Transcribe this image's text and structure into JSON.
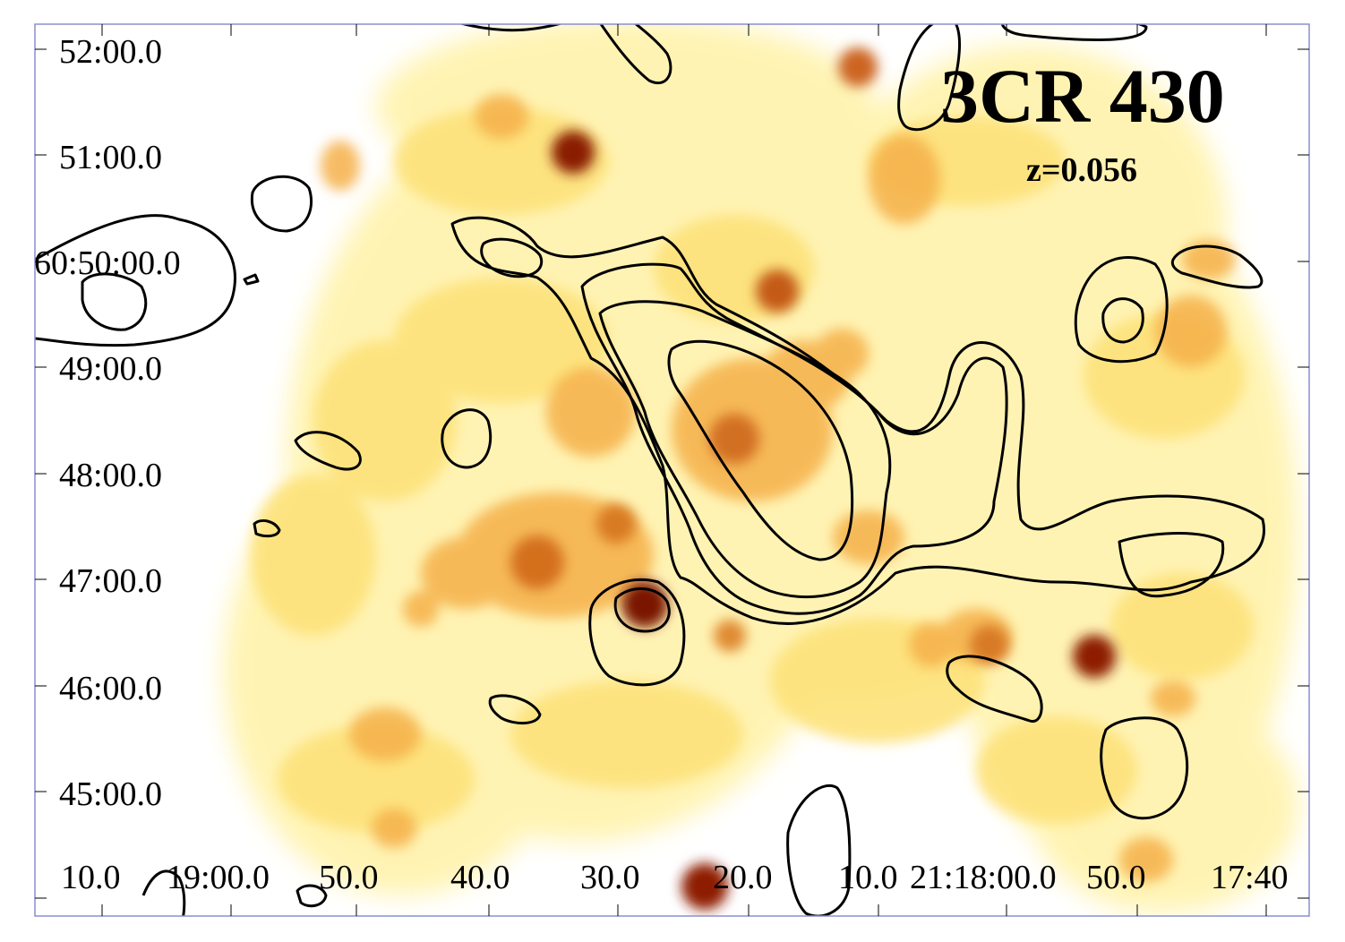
{
  "image": {
    "title": "3CR 430",
    "subtitle": "z=0.056",
    "colors": {
      "frame": "#8a8fd0",
      "contour": "#000000",
      "faint": "#fff6b0",
      "mid": "#f0a640",
      "bright": "#7a1400"
    }
  },
  "axes": {
    "y_tick_labels": [
      "52:00.0",
      "51:00.0",
      "60:50:00.0",
      "49:00.0",
      "48:00.0",
      "47:00.0",
      "46:00.0",
      "45:00.0"
    ],
    "x_tick_labels": [
      "10.0",
      "19:00.0",
      "50.0",
      "40.0",
      "30.0",
      "20.0",
      "10.0",
      "21:18:00.0",
      "50.0",
      "17:40"
    ]
  }
}
